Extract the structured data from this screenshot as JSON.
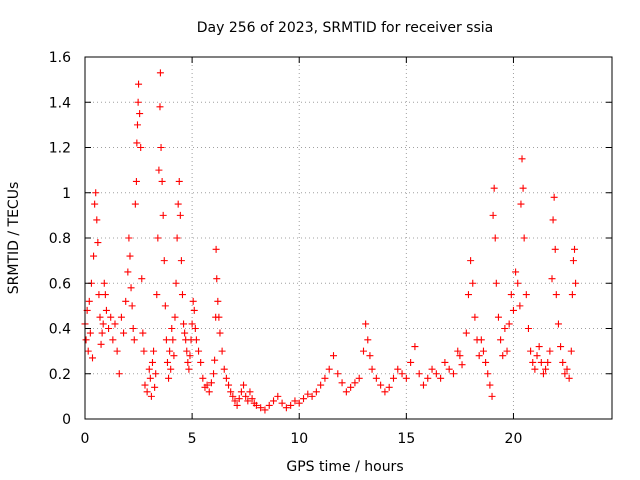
{
  "chart_data": {
    "type": "scatter",
    "title": "Day 256 of 2023, SRMTID for receiver ssia",
    "xlabel": "GPS time / hours",
    "ylabel": "SRMTID / TECUs",
    "xlim": [
      0,
      24.6
    ],
    "ylim": [
      0,
      1.6
    ],
    "xticks": [
      0,
      5,
      10,
      15,
      20
    ],
    "xtick_labels": [
      "0",
      "5",
      "10",
      "15",
      "20"
    ],
    "yticks": [
      0,
      0.2,
      0.4,
      0.6,
      0.8,
      1.0,
      1.2,
      1.4,
      1.6
    ],
    "ytick_labels": [
      "0",
      "0.2",
      "0.4",
      "0.6",
      "0.8",
      "1",
      "1.2",
      "1.4",
      "1.6"
    ],
    "grid": true,
    "marker": "+",
    "color": "#ff0000",
    "series": [
      {
        "name": "SRMTID",
        "points": [
          [
            0.0,
            0.42
          ],
          [
            0.05,
            0.35
          ],
          [
            0.1,
            0.48
          ],
          [
            0.15,
            0.3
          ],
          [
            0.2,
            0.52
          ],
          [
            0.25,
            0.38
          ],
          [
            0.3,
            0.6
          ],
          [
            0.35,
            0.27
          ],
          [
            0.4,
            0.72
          ],
          [
            0.45,
            0.95
          ],
          [
            0.5,
            1.0
          ],
          [
            0.55,
            0.88
          ],
          [
            0.6,
            0.78
          ],
          [
            0.65,
            0.55
          ],
          [
            0.7,
            0.45
          ],
          [
            0.75,
            0.33
          ],
          [
            0.8,
            0.38
          ],
          [
            0.85,
            0.42
          ],
          [
            0.9,
            0.6
          ],
          [
            0.95,
            0.55
          ],
          [
            1.0,
            0.48
          ],
          [
            1.1,
            0.4
          ],
          [
            1.2,
            0.45
          ],
          [
            1.3,
            0.35
          ],
          [
            1.4,
            0.42
          ],
          [
            1.5,
            0.3
          ],
          [
            1.6,
            0.2
          ],
          [
            1.7,
            0.45
          ],
          [
            1.8,
            0.38
          ],
          [
            1.9,
            0.52
          ],
          [
            2.0,
            0.65
          ],
          [
            2.05,
            0.8
          ],
          [
            2.1,
            0.72
          ],
          [
            2.15,
            0.58
          ],
          [
            2.2,
            0.5
          ],
          [
            2.25,
            0.4
          ],
          [
            2.3,
            0.35
          ],
          [
            2.35,
            0.95
          ],
          [
            2.4,
            1.05
          ],
          [
            2.42,
            1.22
          ],
          [
            2.45,
            1.3
          ],
          [
            2.48,
            1.4
          ],
          [
            2.5,
            1.48
          ],
          [
            2.55,
            1.35
          ],
          [
            2.6,
            1.2
          ],
          [
            2.65,
            0.62
          ],
          [
            2.7,
            0.38
          ],
          [
            2.75,
            0.3
          ],
          [
            2.8,
            0.15
          ],
          [
            2.9,
            0.12
          ],
          [
            3.0,
            0.22
          ],
          [
            3.05,
            0.18
          ],
          [
            3.1,
            0.1
          ],
          [
            3.15,
            0.25
          ],
          [
            3.2,
            0.3
          ],
          [
            3.25,
            0.14
          ],
          [
            3.3,
            0.2
          ],
          [
            3.35,
            0.55
          ],
          [
            3.4,
            0.8
          ],
          [
            3.45,
            1.1
          ],
          [
            3.5,
            1.38
          ],
          [
            3.52,
            1.53
          ],
          [
            3.55,
            1.2
          ],
          [
            3.6,
            1.05
          ],
          [
            3.65,
            0.9
          ],
          [
            3.7,
            0.7
          ],
          [
            3.75,
            0.5
          ],
          [
            3.8,
            0.35
          ],
          [
            3.85,
            0.25
          ],
          [
            3.9,
            0.18
          ],
          [
            3.95,
            0.3
          ],
          [
            4.0,
            0.22
          ],
          [
            4.05,
            0.4
          ],
          [
            4.1,
            0.35
          ],
          [
            4.15,
            0.28
          ],
          [
            4.2,
            0.45
          ],
          [
            4.25,
            0.6
          ],
          [
            4.3,
            0.8
          ],
          [
            4.35,
            0.95
          ],
          [
            4.4,
            1.05
          ],
          [
            4.45,
            0.9
          ],
          [
            4.5,
            0.7
          ],
          [
            4.55,
            0.55
          ],
          [
            4.6,
            0.42
          ],
          [
            4.65,
            0.38
          ],
          [
            4.7,
            0.35
          ],
          [
            4.75,
            0.3
          ],
          [
            4.8,
            0.25
          ],
          [
            4.85,
            0.22
          ],
          [
            4.9,
            0.28
          ],
          [
            4.95,
            0.35
          ],
          [
            5.0,
            0.42
          ],
          [
            5.05,
            0.52
          ],
          [
            5.1,
            0.48
          ],
          [
            5.15,
            0.4
          ],
          [
            5.2,
            0.35
          ],
          [
            5.3,
            0.3
          ],
          [
            5.4,
            0.25
          ],
          [
            5.5,
            0.18
          ],
          [
            5.6,
            0.14
          ],
          [
            5.7,
            0.15
          ],
          [
            5.8,
            0.12
          ],
          [
            5.9,
            0.16
          ],
          [
            6.0,
            0.2
          ],
          [
            6.05,
            0.26
          ],
          [
            6.1,
            0.45
          ],
          [
            6.12,
            0.75
          ],
          [
            6.15,
            0.62
          ],
          [
            6.2,
            0.52
          ],
          [
            6.25,
            0.45
          ],
          [
            6.3,
            0.38
          ],
          [
            6.4,
            0.3
          ],
          [
            6.5,
            0.22
          ],
          [
            6.6,
            0.18
          ],
          [
            6.7,
            0.15
          ],
          [
            6.8,
            0.12
          ],
          [
            6.9,
            0.1
          ],
          [
            7.0,
            0.08
          ],
          [
            7.1,
            0.06
          ],
          [
            7.2,
            0.09
          ],
          [
            7.3,
            0.12
          ],
          [
            7.4,
            0.15
          ],
          [
            7.5,
            0.1
          ],
          [
            7.6,
            0.08
          ],
          [
            7.7,
            0.12
          ],
          [
            7.8,
            0.09
          ],
          [
            7.9,
            0.07
          ],
          [
            8.0,
            0.06
          ],
          [
            8.2,
            0.05
          ],
          [
            8.4,
            0.04
          ],
          [
            8.6,
            0.06
          ],
          [
            8.8,
            0.08
          ],
          [
            9.0,
            0.1
          ],
          [
            9.2,
            0.07
          ],
          [
            9.4,
            0.05
          ],
          [
            9.6,
            0.06
          ],
          [
            9.8,
            0.08
          ],
          [
            10.0,
            0.07
          ],
          [
            10.2,
            0.09
          ],
          [
            10.4,
            0.11
          ],
          [
            10.6,
            0.1
          ],
          [
            10.8,
            0.12
          ],
          [
            11.0,
            0.15
          ],
          [
            11.2,
            0.18
          ],
          [
            11.4,
            0.22
          ],
          [
            11.6,
            0.28
          ],
          [
            11.8,
            0.2
          ],
          [
            12.0,
            0.16
          ],
          [
            12.2,
            0.12
          ],
          [
            12.4,
            0.14
          ],
          [
            12.6,
            0.16
          ],
          [
            12.8,
            0.18
          ],
          [
            13.0,
            0.3
          ],
          [
            13.1,
            0.42
          ],
          [
            13.2,
            0.35
          ],
          [
            13.3,
            0.28
          ],
          [
            13.4,
            0.22
          ],
          [
            13.6,
            0.18
          ],
          [
            13.8,
            0.15
          ],
          [
            14.0,
            0.12
          ],
          [
            14.2,
            0.14
          ],
          [
            14.4,
            0.18
          ],
          [
            14.6,
            0.22
          ],
          [
            14.8,
            0.2
          ],
          [
            15.0,
            0.18
          ],
          [
            15.2,
            0.25
          ],
          [
            15.4,
            0.32
          ],
          [
            15.6,
            0.2
          ],
          [
            15.8,
            0.15
          ],
          [
            16.0,
            0.18
          ],
          [
            16.2,
            0.22
          ],
          [
            16.4,
            0.2
          ],
          [
            16.6,
            0.18
          ],
          [
            16.8,
            0.25
          ],
          [
            17.0,
            0.22
          ],
          [
            17.2,
            0.2
          ],
          [
            17.4,
            0.3
          ],
          [
            17.5,
            0.28
          ],
          [
            17.6,
            0.24
          ],
          [
            17.8,
            0.38
          ],
          [
            17.9,
            0.55
          ],
          [
            18.0,
            0.7
          ],
          [
            18.1,
            0.6
          ],
          [
            18.2,
            0.45
          ],
          [
            18.3,
            0.35
          ],
          [
            18.4,
            0.28
          ],
          [
            18.5,
            0.35
          ],
          [
            18.6,
            0.3
          ],
          [
            18.7,
            0.25
          ],
          [
            18.8,
            0.2
          ],
          [
            18.9,
            0.15
          ],
          [
            19.0,
            0.1
          ],
          [
            19.05,
            0.9
          ],
          [
            19.1,
            1.02
          ],
          [
            19.15,
            0.8
          ],
          [
            19.2,
            0.6
          ],
          [
            19.3,
            0.45
          ],
          [
            19.4,
            0.35
          ],
          [
            19.5,
            0.28
          ],
          [
            19.6,
            0.4
          ],
          [
            19.7,
            0.3
          ],
          [
            19.8,
            0.42
          ],
          [
            19.9,
            0.55
          ],
          [
            20.0,
            0.48
          ],
          [
            20.1,
            0.65
          ],
          [
            20.2,
            0.6
          ],
          [
            20.3,
            0.5
          ],
          [
            20.35,
            0.95
          ],
          [
            20.4,
            1.15
          ],
          [
            20.45,
            1.02
          ],
          [
            20.5,
            0.8
          ],
          [
            20.6,
            0.55
          ],
          [
            20.7,
            0.4
          ],
          [
            20.8,
            0.3
          ],
          [
            20.9,
            0.25
          ],
          [
            21.0,
            0.22
          ],
          [
            21.1,
            0.28
          ],
          [
            21.2,
            0.32
          ],
          [
            21.3,
            0.25
          ],
          [
            21.4,
            0.2
          ],
          [
            21.5,
            0.22
          ],
          [
            21.6,
            0.25
          ],
          [
            21.7,
            0.3
          ],
          [
            21.8,
            0.62
          ],
          [
            21.85,
            0.88
          ],
          [
            21.9,
            0.98
          ],
          [
            21.95,
            0.75
          ],
          [
            22.0,
            0.55
          ],
          [
            22.1,
            0.42
          ],
          [
            22.2,
            0.32
          ],
          [
            22.3,
            0.25
          ],
          [
            22.4,
            0.2
          ],
          [
            22.5,
            0.22
          ],
          [
            22.6,
            0.18
          ],
          [
            22.7,
            0.3
          ],
          [
            22.75,
            0.55
          ],
          [
            22.8,
            0.7
          ],
          [
            22.85,
            0.75
          ],
          [
            22.9,
            0.6
          ]
        ]
      }
    ]
  }
}
